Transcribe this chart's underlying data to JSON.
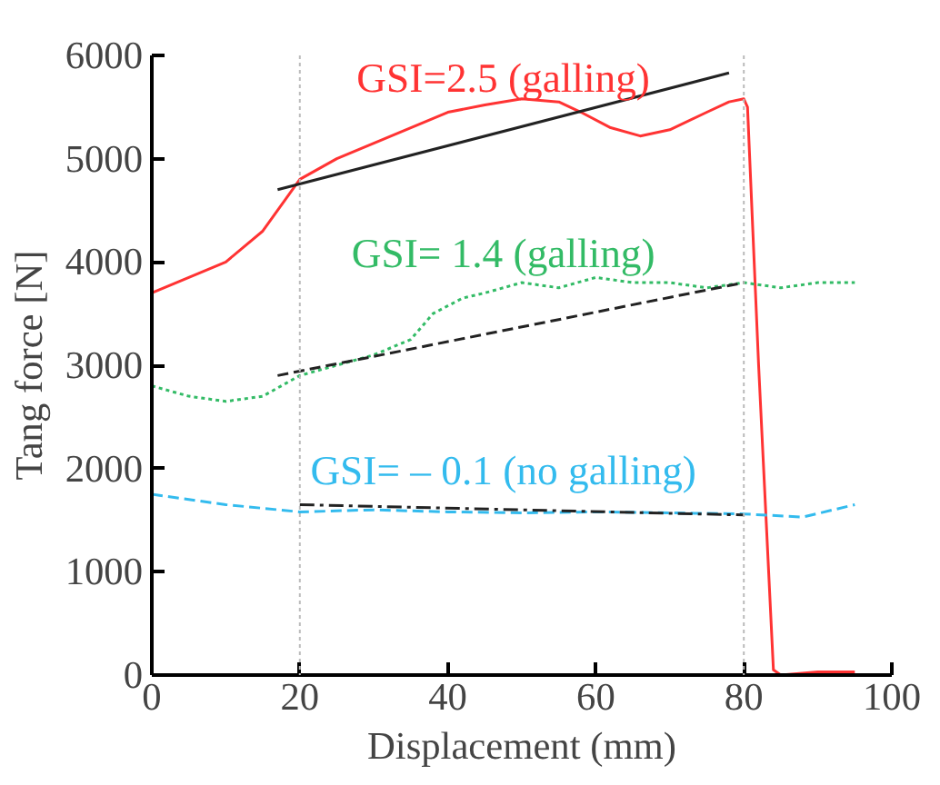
{
  "chart_data": {
    "type": "line",
    "xlabel": "Displacement (mm)",
    "ylabel": "Tang force [N]",
    "xlim": [
      0,
      100
    ],
    "ylim": [
      0,
      6000
    ],
    "xticks": [
      0,
      20,
      40,
      60,
      80,
      100
    ],
    "yticks": [
      0,
      1000,
      2000,
      3000,
      4000,
      5000,
      6000
    ],
    "grid": false,
    "legend": false,
    "series": [
      {
        "name": "GSI=2.5 (galling)",
        "color": "#ff3333",
        "line_style": "solid",
        "x": [
          0,
          5,
          10,
          15,
          18,
          20,
          25,
          30,
          35,
          40,
          45,
          50,
          55,
          58,
          62,
          66,
          70,
          75,
          78,
          80,
          80.5,
          82,
          84,
          85,
          90,
          95
        ],
        "values": [
          3700,
          3850,
          4000,
          4300,
          4600,
          4800,
          5000,
          5150,
          5300,
          5450,
          5520,
          5580,
          5550,
          5450,
          5300,
          5220,
          5280,
          5450,
          5550,
          5580,
          5500,
          3000,
          50,
          0,
          30,
          30
        ]
      },
      {
        "name": "GSI= 1.4 (galling)",
        "color": "#33bb66",
        "line_style": "dotted",
        "x": [
          0,
          5,
          10,
          15,
          20,
          25,
          30,
          35,
          38,
          42,
          45,
          50,
          55,
          60,
          65,
          70,
          75,
          80,
          85,
          90,
          95
        ],
        "values": [
          2800,
          2700,
          2650,
          2700,
          2900,
          3000,
          3100,
          3250,
          3500,
          3650,
          3700,
          3800,
          3750,
          3850,
          3800,
          3800,
          3750,
          3800,
          3750,
          3800,
          3800
        ]
      },
      {
        "name": "GSI= – 0.1 (no galling)",
        "color": "#33bbee",
        "line_style": "dashed",
        "x": [
          0,
          10,
          20,
          30,
          40,
          50,
          60,
          70,
          80,
          88,
          95
        ],
        "values": [
          1750,
          1650,
          1580,
          1600,
          1580,
          1570,
          1580,
          1570,
          1560,
          1530,
          1650
        ]
      },
      {
        "color": "#222222",
        "line_style": "solid",
        "x": [
          17,
          78
        ],
        "values": [
          4700,
          5830
        ]
      },
      {
        "color": "#222222",
        "line_style": "dashed",
        "x": [
          17,
          80
        ],
        "values": [
          2900,
          3800
        ]
      },
      {
        "color": "#222222",
        "line_style": "dashdot",
        "x": [
          20,
          80
        ],
        "values": [
          1650,
          1550
        ]
      }
    ],
    "ref_lines": [
      {
        "axis": "x",
        "value": 20,
        "color": "#bbbbbb",
        "line_style": "dotted"
      },
      {
        "axis": "x",
        "value": 80,
        "color": "#bbbbbb",
        "line_style": "dotted"
      }
    ]
  }
}
